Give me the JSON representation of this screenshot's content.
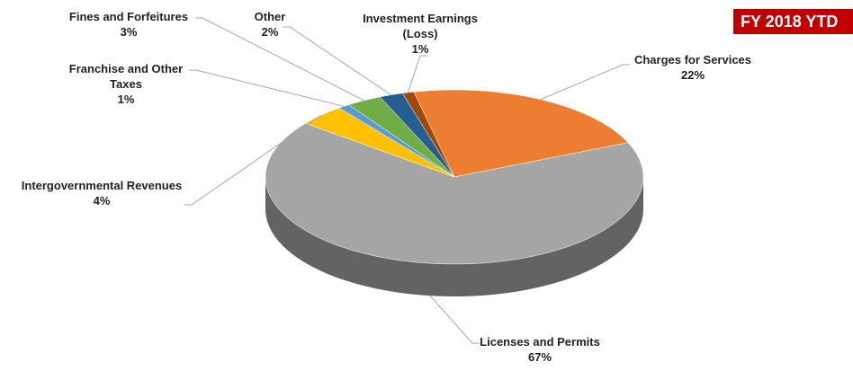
{
  "chart_data": {
    "type": "pie",
    "title": "FY 2018 YTD",
    "categories": [
      "Investment Earnings (Loss)",
      "Charges for Services",
      "Licenses and Permits",
      "Intergovernmental Revenues",
      "Franchise and Other Taxes",
      "Fines and Forfeitures",
      "Other"
    ],
    "values": [
      1,
      22,
      67,
      4,
      1,
      3,
      2
    ],
    "value_labels": [
      "1%",
      "22%",
      "67%",
      "4%",
      "1%",
      "3%",
      "2%"
    ],
    "colors": [
      "#9e480e",
      "#ed7d31",
      "#a5a5a5",
      "#ffc000",
      "#5b9bd5",
      "#70ad47",
      "#255e91"
    ]
  }
}
